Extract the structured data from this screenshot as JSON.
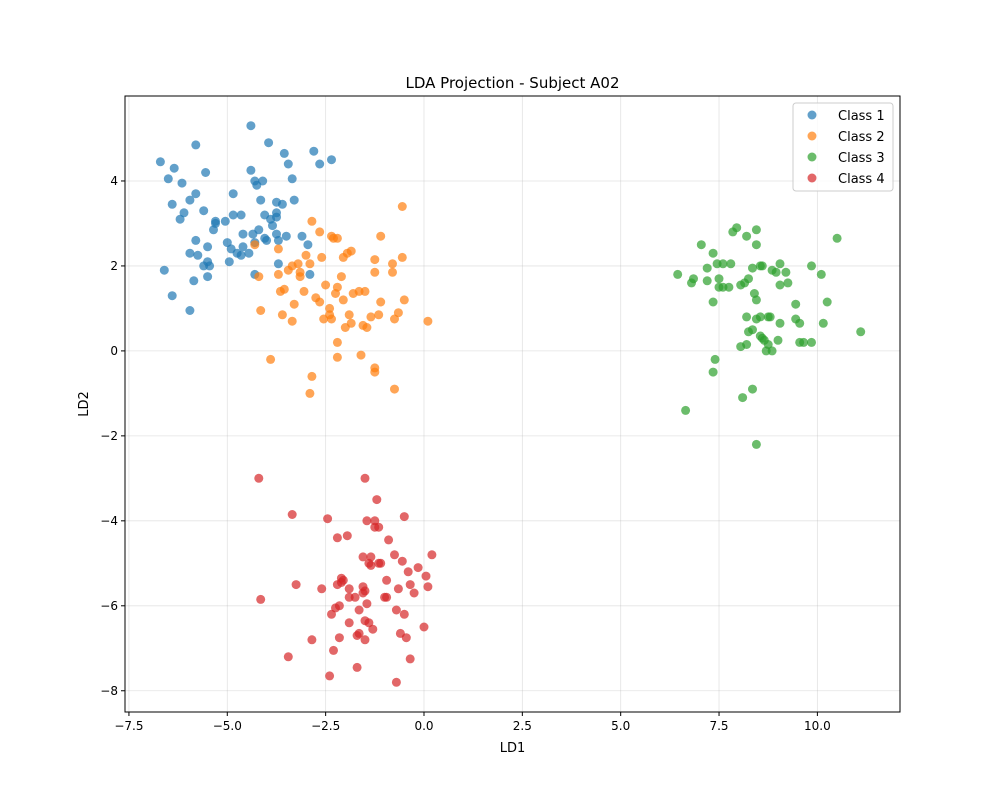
{
  "chart_data": {
    "type": "scatter",
    "title": "LDA Projection - Subject A02",
    "xlabel": "LD1",
    "ylabel": "LD2",
    "xlim": [
      -7.6,
      12.1
    ],
    "ylim": [
      -8.5,
      6.0
    ],
    "xticks": [
      -7.5,
      -5.0,
      -2.5,
      0.0,
      2.5,
      5.0,
      7.5,
      10.0
    ],
    "xtick_labels": [
      "−7.5",
      "−5.0",
      "−2.5",
      "0.0",
      "2.5",
      "5.0",
      "7.5",
      "10.0"
    ],
    "yticks": [
      -8,
      -6,
      -4,
      -2,
      0,
      2,
      4
    ],
    "ytick_labels": [
      "−8",
      "−6",
      "−4",
      "−2",
      "0",
      "2",
      "4"
    ],
    "grid": true,
    "legend_position": "top-right",
    "series": [
      {
        "name": "Class 1",
        "color": "#1f77b4",
        "points": [
          [
            -6.7,
            4.45
          ],
          [
            -6.5,
            4.05
          ],
          [
            -6.35,
            4.3
          ],
          [
            -6.15,
            3.95
          ],
          [
            -5.8,
            4.85
          ],
          [
            -5.55,
            4.2
          ],
          [
            -4.4,
            5.3
          ],
          [
            -3.95,
            4.9
          ],
          [
            -3.55,
            4.65
          ],
          [
            -3.45,
            4.4
          ],
          [
            -2.8,
            4.7
          ],
          [
            -2.65,
            4.4
          ],
          [
            -2.35,
            4.5
          ],
          [
            -4.4,
            4.25
          ],
          [
            -4.3,
            4.0
          ],
          [
            -4.25,
            3.9
          ],
          [
            -4.1,
            4.0
          ],
          [
            -3.35,
            4.05
          ],
          [
            -3.75,
            3.5
          ],
          [
            -3.6,
            3.45
          ],
          [
            -3.3,
            3.55
          ],
          [
            -6.4,
            3.45
          ],
          [
            -5.95,
            3.55
          ],
          [
            -5.8,
            3.7
          ],
          [
            -5.6,
            3.3
          ],
          [
            -4.85,
            3.7
          ],
          [
            -4.15,
            3.55
          ],
          [
            -6.2,
            3.1
          ],
          [
            -6.1,
            3.25
          ],
          [
            -5.3,
            3.05
          ],
          [
            -5.05,
            3.05
          ],
          [
            -4.85,
            3.2
          ],
          [
            -4.65,
            3.2
          ],
          [
            -4.05,
            3.2
          ],
          [
            -3.9,
            3.1
          ],
          [
            -3.75,
            3.15
          ],
          [
            -3.75,
            3.25
          ],
          [
            -3.85,
            2.95
          ],
          [
            -5.35,
            2.85
          ],
          [
            -5.3,
            3.0
          ],
          [
            -4.6,
            2.75
          ],
          [
            -4.35,
            2.75
          ],
          [
            -4.2,
            2.85
          ],
          [
            -4.05,
            2.65
          ],
          [
            -3.75,
            2.75
          ],
          [
            -3.5,
            2.7
          ],
          [
            -3.1,
            2.7
          ],
          [
            -2.95,
            2.5
          ],
          [
            -5.8,
            2.6
          ],
          [
            -5.5,
            2.45
          ],
          [
            -5.0,
            2.55
          ],
          [
            -4.9,
            2.4
          ],
          [
            -4.6,
            2.45
          ],
          [
            -4.3,
            2.55
          ],
          [
            -4.0,
            2.6
          ],
          [
            -3.7,
            2.6
          ],
          [
            -5.95,
            2.3
          ],
          [
            -5.75,
            2.25
          ],
          [
            -4.75,
            2.3
          ],
          [
            -4.65,
            2.25
          ],
          [
            -4.45,
            2.3
          ],
          [
            -6.6,
            1.9
          ],
          [
            -5.6,
            2.0
          ],
          [
            -5.5,
            2.1
          ],
          [
            -5.45,
            2.0
          ],
          [
            -4.95,
            2.1
          ],
          [
            -3.7,
            2.05
          ],
          [
            -5.85,
            1.65
          ],
          [
            -5.5,
            1.75
          ],
          [
            -4.3,
            1.8
          ],
          [
            -2.9,
            1.8
          ],
          [
            -6.4,
            1.3
          ],
          [
            -5.95,
            0.95
          ]
        ]
      },
      {
        "name": "Class 2",
        "color": "#ff7f0e",
        "points": [
          [
            -0.55,
            3.4
          ],
          [
            -2.85,
            3.05
          ],
          [
            -2.65,
            2.8
          ],
          [
            -2.3,
            2.65
          ],
          [
            -2.35,
            2.7
          ],
          [
            -2.2,
            2.65
          ],
          [
            -1.1,
            2.7
          ],
          [
            -4.3,
            2.5
          ],
          [
            -3.7,
            2.4
          ],
          [
            -3.0,
            2.25
          ],
          [
            -2.6,
            2.2
          ],
          [
            -1.85,
            2.35
          ],
          [
            -1.95,
            2.3
          ],
          [
            -2.05,
            2.2
          ],
          [
            -1.25,
            2.15
          ],
          [
            -0.55,
            2.2
          ],
          [
            -3.35,
            2.0
          ],
          [
            -3.2,
            2.05
          ],
          [
            -3.45,
            1.9
          ],
          [
            -3.15,
            1.85
          ],
          [
            -3.15,
            1.75
          ],
          [
            -2.9,
            2.05
          ],
          [
            -2.1,
            1.75
          ],
          [
            -1.25,
            1.85
          ],
          [
            -0.8,
            2.05
          ],
          [
            -0.8,
            1.85
          ],
          [
            -4.2,
            1.75
          ],
          [
            -3.7,
            1.8
          ],
          [
            -2.5,
            1.55
          ],
          [
            -2.2,
            1.5
          ],
          [
            -3.65,
            1.4
          ],
          [
            -3.55,
            1.45
          ],
          [
            -3.05,
            1.4
          ],
          [
            -2.75,
            1.25
          ],
          [
            -2.65,
            1.15
          ],
          [
            -2.25,
            1.35
          ],
          [
            -2.05,
            1.2
          ],
          [
            -1.8,
            1.35
          ],
          [
            -1.65,
            1.4
          ],
          [
            -1.5,
            1.4
          ],
          [
            -1.1,
            1.15
          ],
          [
            -0.5,
            1.2
          ],
          [
            -4.15,
            0.95
          ],
          [
            -3.6,
            0.85
          ],
          [
            -3.3,
            1.1
          ],
          [
            -2.55,
            0.75
          ],
          [
            -2.4,
            1.0
          ],
          [
            -2.4,
            0.85
          ],
          [
            -2.35,
            0.75
          ],
          [
            -1.9,
            0.85
          ],
          [
            -1.85,
            0.65
          ],
          [
            -1.55,
            0.6
          ],
          [
            -1.35,
            0.8
          ],
          [
            -1.15,
            0.85
          ],
          [
            -0.65,
            0.9
          ],
          [
            -0.75,
            0.75
          ],
          [
            0.1,
            0.7
          ],
          [
            -3.35,
            0.7
          ],
          [
            -2.0,
            0.55
          ],
          [
            -1.45,
            0.55
          ],
          [
            -2.2,
            0.2
          ],
          [
            -3.9,
            -0.2
          ],
          [
            -2.2,
            -0.15
          ],
          [
            -1.6,
            -0.1
          ],
          [
            -1.25,
            -0.4
          ],
          [
            -1.25,
            -0.5
          ],
          [
            -2.85,
            -0.6
          ],
          [
            -0.75,
            -0.9
          ],
          [
            -2.9,
            -1.0
          ]
        ]
      },
      {
        "name": "Class 3",
        "color": "#2ca02c",
        "points": [
          [
            7.85,
            2.8
          ],
          [
            7.95,
            2.9
          ],
          [
            8.45,
            2.85
          ],
          [
            8.2,
            2.7
          ],
          [
            10.5,
            2.65
          ],
          [
            8.45,
            2.5
          ],
          [
            7.05,
            2.5
          ],
          [
            7.35,
            2.3
          ],
          [
            7.2,
            1.95
          ],
          [
            7.45,
            2.05
          ],
          [
            7.6,
            2.05
          ],
          [
            7.8,
            2.05
          ],
          [
            8.55,
            2.0
          ],
          [
            8.6,
            2.0
          ],
          [
            8.95,
            1.85
          ],
          [
            9.05,
            2.05
          ],
          [
            9.85,
            2.0
          ],
          [
            8.35,
            1.95
          ],
          [
            9.2,
            1.85
          ],
          [
            8.85,
            1.9
          ],
          [
            10.1,
            1.8
          ],
          [
            6.45,
            1.8
          ],
          [
            6.8,
            1.6
          ],
          [
            6.85,
            1.7
          ],
          [
            7.2,
            1.65
          ],
          [
            7.5,
            1.7
          ],
          [
            8.05,
            1.55
          ],
          [
            8.15,
            1.6
          ],
          [
            8.25,
            1.7
          ],
          [
            9.25,
            1.6
          ],
          [
            7.5,
            1.5
          ],
          [
            7.6,
            1.5
          ],
          [
            7.75,
            1.5
          ],
          [
            8.4,
            1.35
          ],
          [
            9.05,
            1.55
          ],
          [
            7.35,
            1.15
          ],
          [
            8.45,
            1.2
          ],
          [
            9.45,
            1.1
          ],
          [
            10.25,
            1.15
          ],
          [
            8.2,
            0.8
          ],
          [
            8.45,
            0.75
          ],
          [
            8.55,
            0.8
          ],
          [
            8.75,
            0.8
          ],
          [
            8.8,
            0.8
          ],
          [
            9.05,
            0.65
          ],
          [
            9.45,
            0.75
          ],
          [
            9.55,
            0.65
          ],
          [
            10.15,
            0.65
          ],
          [
            11.1,
            0.45
          ],
          [
            8.25,
            0.45
          ],
          [
            8.35,
            0.5
          ],
          [
            8.55,
            0.35
          ],
          [
            8.6,
            0.3
          ],
          [
            8.75,
            0.15
          ],
          [
            8.65,
            0.25
          ],
          [
            8.2,
            0.15
          ],
          [
            9.0,
            0.25
          ],
          [
            9.55,
            0.2
          ],
          [
            9.65,
            0.2
          ],
          [
            9.85,
            0.2
          ],
          [
            8.05,
            0.1
          ],
          [
            8.7,
            0.0
          ],
          [
            8.85,
            0.0
          ],
          [
            7.4,
            -0.2
          ],
          [
            7.35,
            -0.5
          ],
          [
            8.35,
            -0.9
          ],
          [
            8.1,
            -1.1
          ],
          [
            6.65,
            -1.4
          ],
          [
            8.45,
            -2.2
          ]
        ]
      },
      {
        "name": "Class 4",
        "color": "#d62728",
        "points": [
          [
            -4.2,
            -3.0
          ],
          [
            -1.5,
            -3.0
          ],
          [
            -1.2,
            -3.5
          ],
          [
            -3.35,
            -3.85
          ],
          [
            -2.45,
            -3.95
          ],
          [
            -1.45,
            -4.0
          ],
          [
            -1.25,
            -4.0
          ],
          [
            -1.25,
            -4.15
          ],
          [
            -1.15,
            -4.15
          ],
          [
            -0.5,
            -3.9
          ],
          [
            -1.95,
            -4.35
          ],
          [
            -2.2,
            -4.4
          ],
          [
            -0.9,
            -4.45
          ],
          [
            -0.75,
            -4.8
          ],
          [
            -1.55,
            -4.85
          ],
          [
            -1.35,
            -4.85
          ],
          [
            -1.4,
            -5.0
          ],
          [
            -1.35,
            -5.05
          ],
          [
            -1.1,
            -5.0
          ],
          [
            -1.15,
            -5.0
          ],
          [
            -0.55,
            -4.95
          ],
          [
            0.2,
            -4.8
          ],
          [
            -0.4,
            -5.2
          ],
          [
            -0.15,
            -5.1
          ],
          [
            0.05,
            -5.3
          ],
          [
            -2.1,
            -5.35
          ],
          [
            -2.05,
            -5.4
          ],
          [
            -2.1,
            -5.45
          ],
          [
            -2.2,
            -5.5
          ],
          [
            -1.9,
            -5.6
          ],
          [
            -1.55,
            -5.55
          ],
          [
            -1.5,
            -5.65
          ],
          [
            -1.55,
            -5.7
          ],
          [
            -1.75,
            -5.8
          ],
          [
            -1.9,
            -5.8
          ],
          [
            -0.95,
            -5.4
          ],
          [
            -0.65,
            -5.6
          ],
          [
            -0.35,
            -5.5
          ],
          [
            -0.25,
            -5.7
          ],
          [
            0.1,
            -5.55
          ],
          [
            -3.25,
            -5.5
          ],
          [
            -2.6,
            -5.6
          ],
          [
            -4.15,
            -5.85
          ],
          [
            -1.45,
            -5.95
          ],
          [
            -1.0,
            -5.8
          ],
          [
            -0.95,
            -5.8
          ],
          [
            -2.15,
            -6.0
          ],
          [
            -2.25,
            -6.05
          ],
          [
            -1.65,
            -6.1
          ],
          [
            -0.7,
            -6.1
          ],
          [
            -2.35,
            -6.2
          ],
          [
            -0.5,
            -6.2
          ],
          [
            -1.5,
            -6.35
          ],
          [
            -1.9,
            -6.4
          ],
          [
            -1.4,
            -6.4
          ],
          [
            -1.3,
            -6.55
          ],
          [
            -0.6,
            -6.65
          ],
          [
            -0.45,
            -6.75
          ],
          [
            0.0,
            -6.5
          ],
          [
            -1.65,
            -6.65
          ],
          [
            -1.7,
            -6.7
          ],
          [
            -1.5,
            -6.8
          ],
          [
            -2.85,
            -6.8
          ],
          [
            -2.15,
            -6.75
          ],
          [
            -2.3,
            -7.05
          ],
          [
            -3.45,
            -7.2
          ],
          [
            -0.35,
            -7.25
          ],
          [
            -1.7,
            -7.45
          ],
          [
            -2.4,
            -7.65
          ],
          [
            -0.7,
            -7.8
          ]
        ]
      }
    ]
  }
}
